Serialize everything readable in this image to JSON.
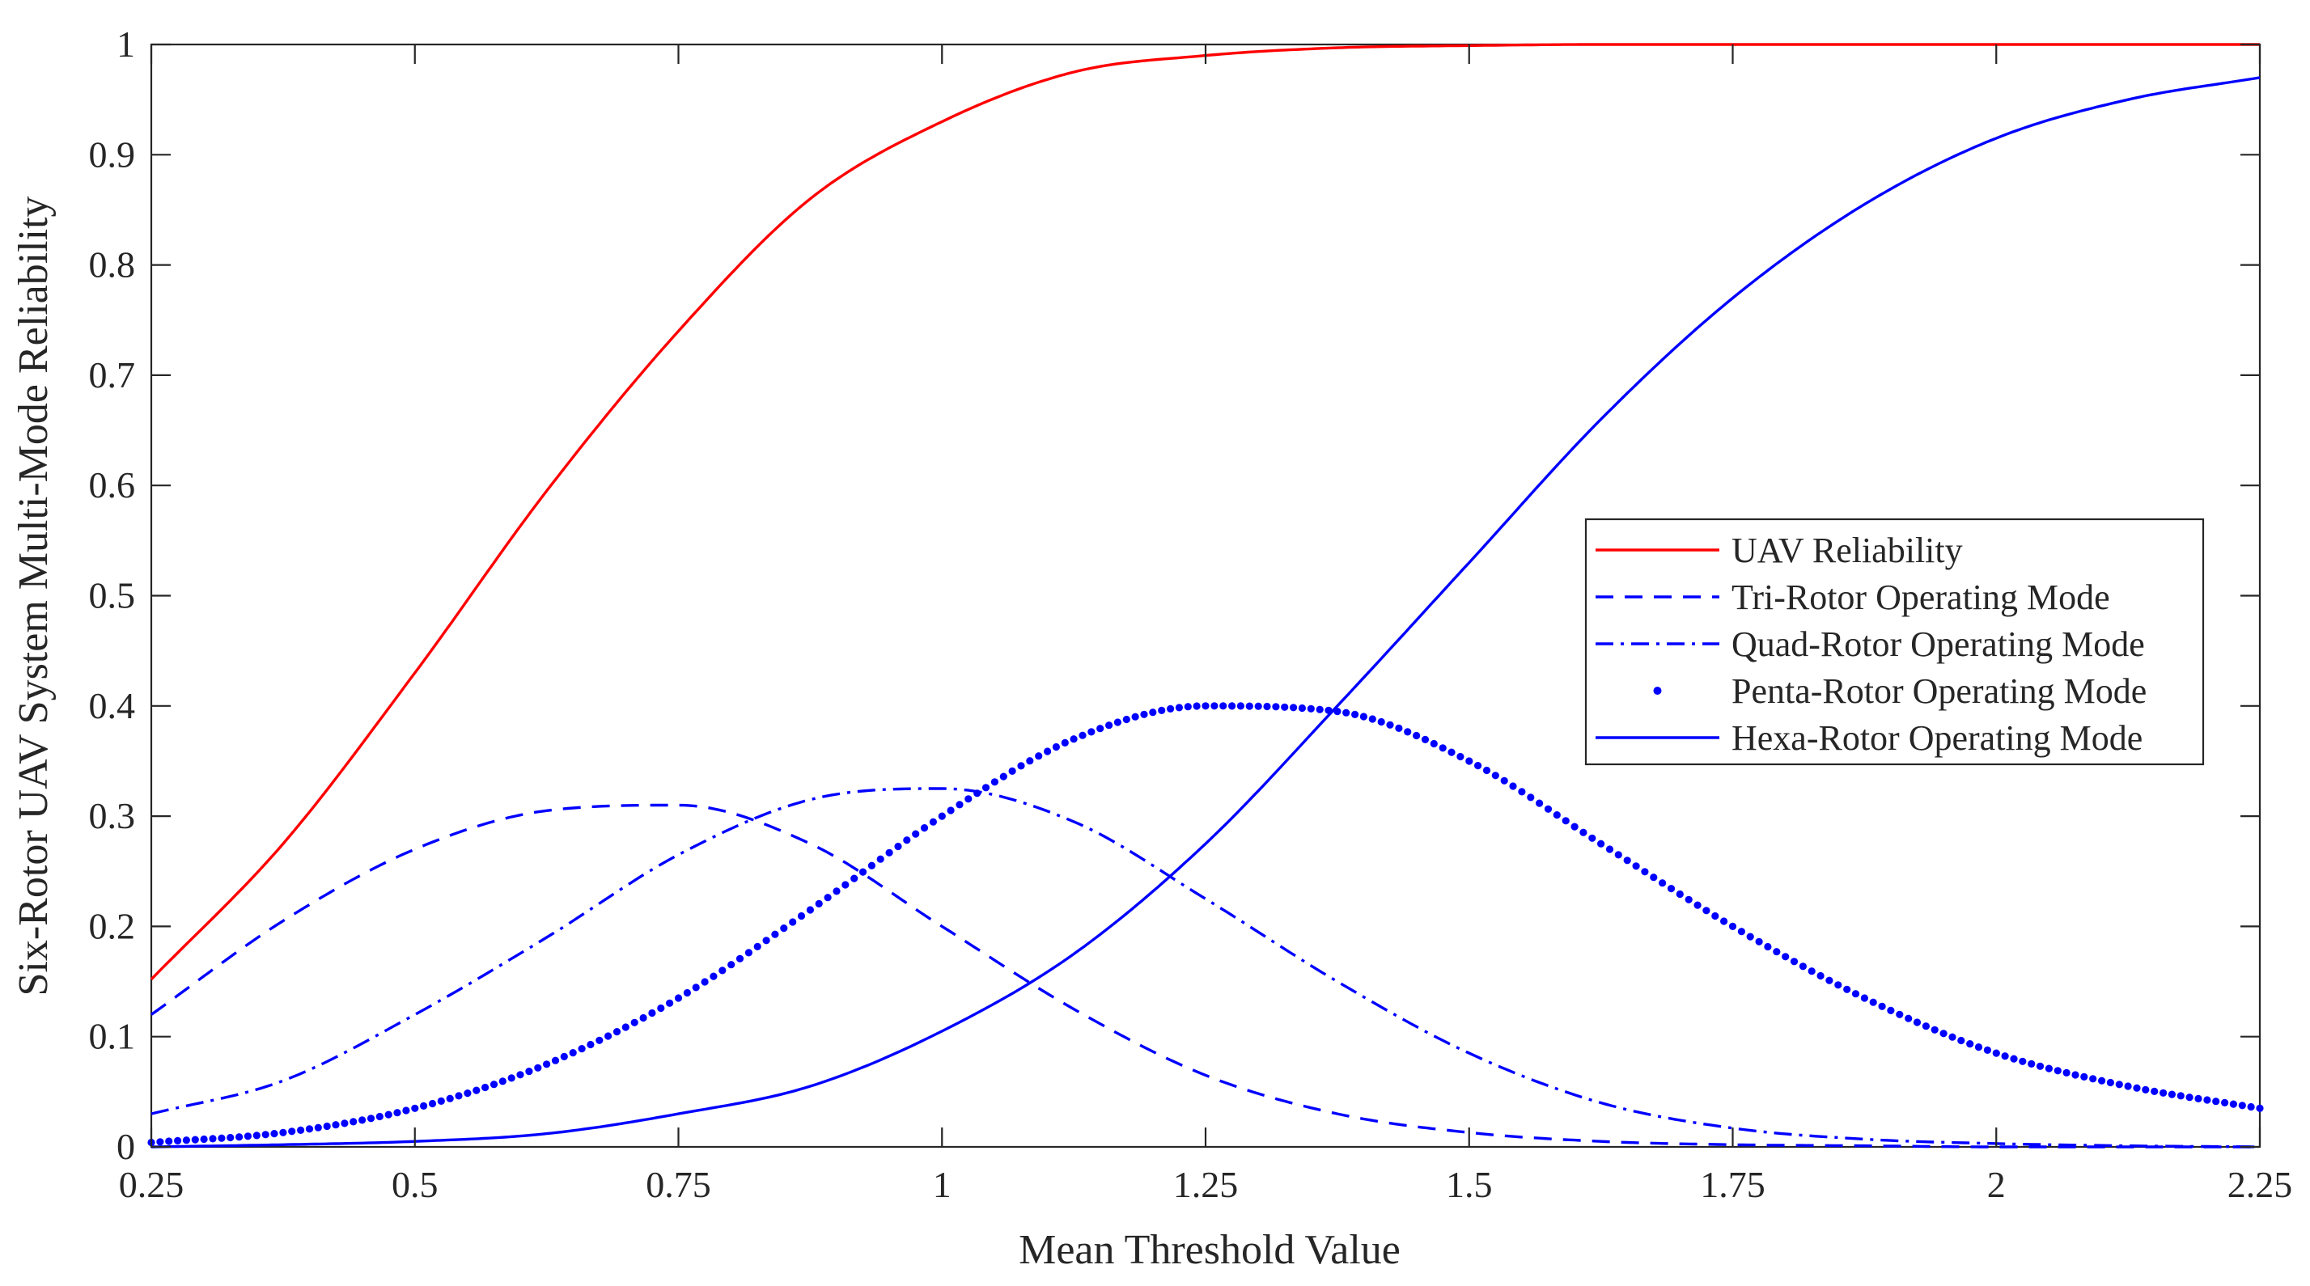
{
  "chart_data": {
    "type": "line",
    "title": "",
    "xlabel": "Mean Threshold Value",
    "ylabel": "Six-Rotor UAV System Multi-Mode Reliability",
    "xlim": [
      0.25,
      2.25
    ],
    "ylim": [
      0,
      1
    ],
    "xticks": [
      0.25,
      0.5,
      0.75,
      1,
      1.25,
      1.5,
      1.75,
      2,
      2.25
    ],
    "xtick_labels": [
      "0.25",
      "0.5",
      "0.75",
      "1",
      "1.25",
      "1.5",
      "1.75",
      "2",
      "2.25"
    ],
    "yticks": [
      0,
      0.1,
      0.2,
      0.3,
      0.4,
      0.5,
      0.6,
      0.7,
      0.8,
      0.9,
      1
    ],
    "ytick_labels": [
      "0",
      "0.1",
      "0.2",
      "0.3",
      "0.4",
      "0.5",
      "0.6",
      "0.7",
      "0.8",
      "0.9",
      "1"
    ],
    "grid": false,
    "legend_position": "center-right",
    "x": [
      0.25,
      0.375,
      0.5,
      0.625,
      0.75,
      0.875,
      1.0,
      1.125,
      1.25,
      1.375,
      1.5,
      1.625,
      1.75,
      1.875,
      2.0,
      2.125,
      2.25
    ],
    "series": [
      {
        "name": "UAV Reliability",
        "color": "#ff0000",
        "style": "solid",
        "values": [
          0.152,
          0.275,
          0.43,
          0.595,
          0.74,
          0.86,
          0.93,
          0.975,
          0.99,
          0.997,
          0.999,
          1.0,
          1.0,
          1.0,
          1.0,
          1.0,
          1.0
        ]
      },
      {
        "name": "Tri-Rotor Operating Mode",
        "color": "#0000ff",
        "style": "dashed",
        "values": [
          0.12,
          0.205,
          0.27,
          0.305,
          0.31,
          0.275,
          0.2,
          0.125,
          0.065,
          0.03,
          0.013,
          0.005,
          0.002,
          0.001,
          0.0,
          0.0,
          0.0
        ]
      },
      {
        "name": "Quad-Rotor Operating Mode",
        "color": "#0000ff",
        "style": "dashdot",
        "values": [
          0.03,
          0.06,
          0.12,
          0.19,
          0.265,
          0.315,
          0.325,
          0.295,
          0.225,
          0.15,
          0.085,
          0.04,
          0.017,
          0.007,
          0.003,
          0.001,
          0.0
        ]
      },
      {
        "name": "Penta-Rotor Operating Mode",
        "color": "#0000ff",
        "style": "dotted",
        "values": [
          0.004,
          0.013,
          0.035,
          0.075,
          0.135,
          0.215,
          0.3,
          0.37,
          0.4,
          0.395,
          0.35,
          0.275,
          0.2,
          0.135,
          0.085,
          0.055,
          0.035
        ]
      },
      {
        "name": "Hexa-Rotor Operating Mode",
        "color": "#0000ff",
        "style": "solid",
        "values": [
          0.0,
          0.002,
          0.005,
          0.012,
          0.03,
          0.055,
          0.105,
          0.175,
          0.275,
          0.4,
          0.53,
          0.66,
          0.77,
          0.855,
          0.915,
          0.95,
          0.97
        ]
      }
    ]
  }
}
